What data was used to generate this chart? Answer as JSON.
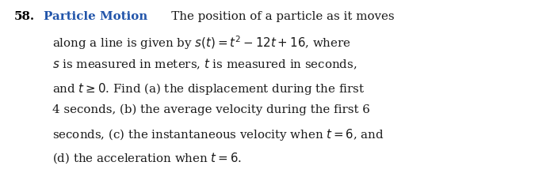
{
  "background_color": "#ffffff",
  "number": "58.",
  "bold_label": "Particle Motion",
  "number_color": "#000000",
  "label_color": "#2255aa",
  "text_color": "#1a1a1a",
  "font_size": 10.8,
  "line1_suffix": "   The position of a particle as it moves",
  "lines": [
    "along a line is given by $s(t) = t^2 - 12t + 16$, where",
    "$s$ is measured in meters, $t$ is measured in seconds,",
    "and $t \\geq 0$. Find (a) the displacement during the first",
    "4 seconds, (b) the average velocity during the first 6",
    "seconds, (c) the instantaneous velocity when $t = 6$, and",
    "(d) the acceleration when $t = 6$."
  ],
  "fig_width": 7.04,
  "fig_height": 2.24,
  "dpi": 100
}
